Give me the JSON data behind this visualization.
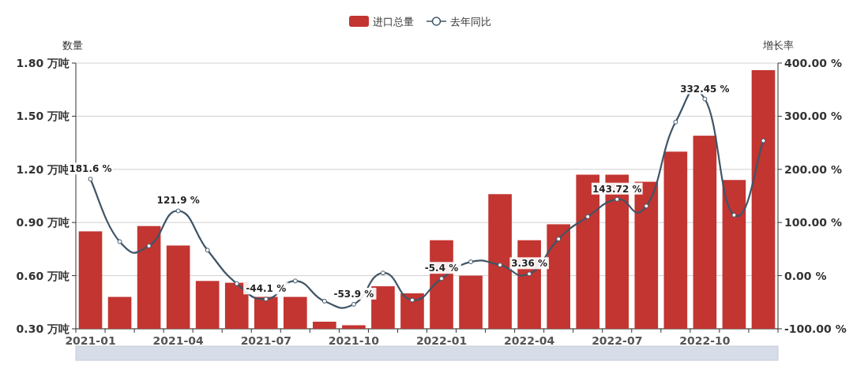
{
  "chart_data": {
    "type": "bar",
    "categories": [
      "2021-01",
      null,
      null,
      "2021-04",
      null,
      null,
      "2021-07",
      null,
      null,
      "2021-10",
      null,
      null,
      "2022-01",
      null,
      null,
      "2022-04",
      null,
      null,
      "2022-07",
      null,
      null,
      "2022-10",
      null,
      null
    ],
    "series": [
      {
        "name": "进口总量",
        "color": "#c23531",
        "values": [
          0.85,
          0.48,
          0.88,
          0.77,
          0.57,
          0.56,
          0.48,
          0.48,
          0.34,
          0.32,
          0.54,
          0.5,
          0.8,
          0.6,
          1.06,
          0.8,
          0.89,
          1.17,
          1.17,
          1.13,
          1.3,
          1.39,
          1.14,
          1.76
        ]
      },
      {
        "name": "去年同比",
        "type": "line",
        "axis": "y2",
        "color": "#3f5566",
        "values": [
          181.6,
          64,
          56,
          121.9,
          48,
          -15,
          -44.1,
          -10,
          -48,
          -53.9,
          5,
          -46,
          -5.4,
          26,
          20,
          3.36,
          69,
          111,
          143.72,
          131,
          289,
          332.45,
          114,
          254
        ],
        "value_labels": [
          "181.6 %",
          null,
          null,
          "121.9 %",
          null,
          null,
          "-44.1 %",
          null,
          null,
          "-53.9 %",
          null,
          null,
          "-5.4 %",
          null,
          null,
          "3.36 %",
          null,
          null,
          "143.72 %",
          null,
          null,
          "332.45 %",
          null,
          null
        ]
      }
    ],
    "ylabel": "数量",
    "y2label": "增长率",
    "ylim": [
      0.3,
      1.8
    ],
    "yticks": [
      {
        "value": 0.3,
        "label": "0.30 万吨"
      },
      {
        "value": 0.6,
        "label": "0.60 万吨"
      },
      {
        "value": 0.9,
        "label": "0.90 万吨"
      },
      {
        "value": 1.2,
        "label": "1.20 万吨"
      },
      {
        "value": 1.5,
        "label": "1.50 万吨"
      },
      {
        "value": 1.8,
        "label": "1.80 万吨"
      }
    ],
    "y2lim": [
      -100,
      400
    ],
    "y2ticks": [
      {
        "value": -100,
        "label": "-100.00 %"
      },
      {
        "value": 0,
        "label": "0.00 %"
      },
      {
        "value": 100,
        "label": "100.00 %"
      },
      {
        "value": 200,
        "label": "200.00 %"
      },
      {
        "value": 300,
        "label": "300.00 %"
      },
      {
        "value": 400,
        "label": "400.00 %"
      }
    ],
    "grid": "y",
    "legend": "top",
    "marker": "circle",
    "line_style": "solid"
  }
}
